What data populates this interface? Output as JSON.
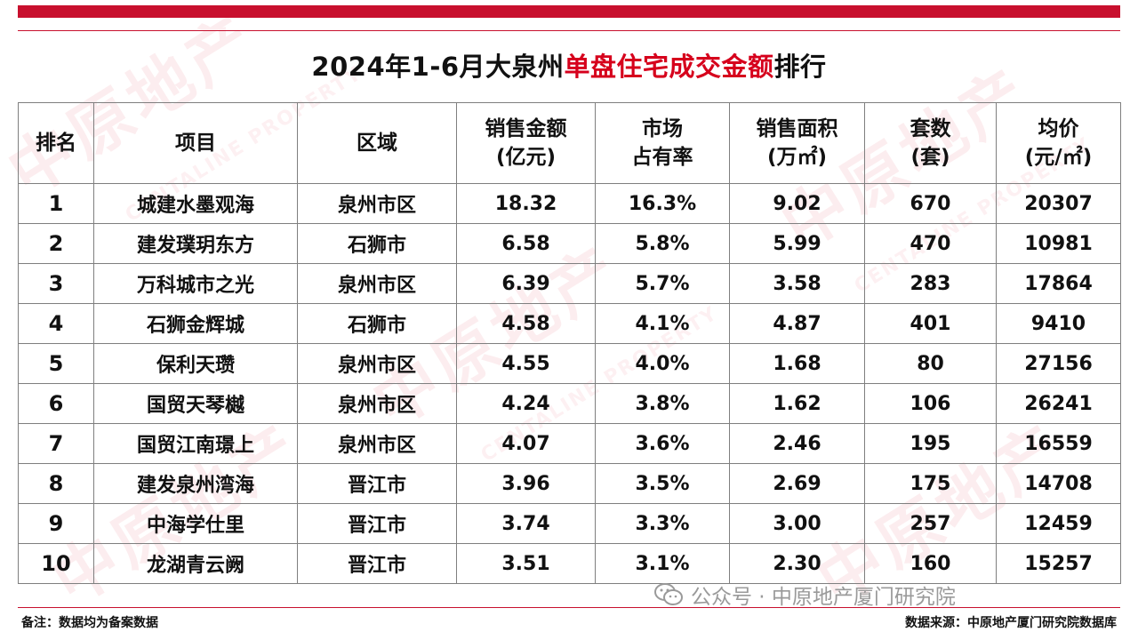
{
  "title": {
    "prefix": "2024年1-6月大泉州",
    "highlight": "单盘住宅成交金额",
    "suffix": "排行"
  },
  "table": {
    "headers": [
      {
        "line1": "排名",
        "line2": ""
      },
      {
        "line1": "项目",
        "line2": ""
      },
      {
        "line1": "区域",
        "line2": ""
      },
      {
        "line1": "销售金额",
        "line2": "(亿元)"
      },
      {
        "line1": "市场",
        "line2": "占有率"
      },
      {
        "line1": "销售面积",
        "line2": "(万㎡)"
      },
      {
        "line1": "套数",
        "line2": "(套)"
      },
      {
        "line1": "均价",
        "line2": "(元/㎡)"
      }
    ],
    "rows": [
      [
        "1",
        "城建水墨观海",
        "泉州市区",
        "18.32",
        "16.3%",
        "9.02",
        "670",
        "20307"
      ],
      [
        "2",
        "建发璞玥东方",
        "石狮市",
        "6.58",
        "5.8%",
        "5.99",
        "470",
        "10981"
      ],
      [
        "3",
        "万科城市之光",
        "泉州市区",
        "6.39",
        "5.7%",
        "3.58",
        "283",
        "17864"
      ],
      [
        "4",
        "石狮金辉城",
        "石狮市",
        "4.58",
        "4.1%",
        "4.87",
        "401",
        "9410"
      ],
      [
        "5",
        "保利天瓒",
        "泉州市区",
        "4.55",
        "4.0%",
        "1.68",
        "80",
        "27156"
      ],
      [
        "6",
        "国贸天琴樾",
        "泉州市区",
        "4.24",
        "3.8%",
        "1.62",
        "106",
        "26241"
      ],
      [
        "7",
        "国贸江南璟上",
        "泉州市区",
        "4.07",
        "3.6%",
        "2.46",
        "195",
        "16559"
      ],
      [
        "8",
        "建发泉州湾海",
        "晋江市",
        "3.96",
        "3.5%",
        "2.69",
        "175",
        "14708"
      ],
      [
        "9",
        "中海学仕里",
        "晋江市",
        "3.74",
        "3.3%",
        "3.00",
        "257",
        "12459"
      ],
      [
        "10",
        "龙湖青云阙",
        "晋江市",
        "3.51",
        "3.1%",
        "2.30",
        "160",
        "15257"
      ]
    ]
  },
  "public_account": "公众号 · 中原地产厦门研究院",
  "footer": {
    "note": "备注：数据均为备案数据",
    "source": "数据来源：中原地产厦门研究院数据库"
  },
  "watermark": {
    "brand": "中原地产",
    "sub": "CENTALINE PROPERTY"
  },
  "colors": {
    "accent": "#d6001c",
    "bar": "#c8102e",
    "border": "#7f7f7f"
  }
}
